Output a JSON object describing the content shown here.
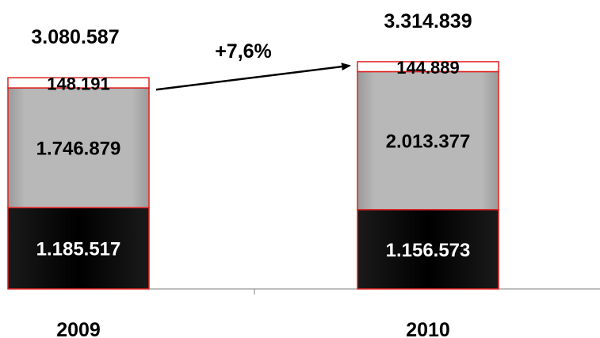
{
  "chart_data": {
    "type": "bar",
    "stacked": true,
    "categories": [
      "2009",
      "2010"
    ],
    "series": [
      {
        "values": [
          1185517,
          1156573
        ],
        "value_labels": [
          "1.185.517",
          "1.156.573"
        ],
        "color": "#000000",
        "label_color": "#ffffff"
      },
      {
        "values": [
          1746879,
          2013377
        ],
        "value_labels": [
          "1.746.879",
          "2.013.377"
        ],
        "color": "#b4b4b4",
        "label_color": "#000000"
      },
      {
        "values": [
          148191,
          144889
        ],
        "value_labels": [
          "148.191",
          "144.889"
        ],
        "color": "#ffffff",
        "label_color": "#000000"
      }
    ],
    "totals": [
      3080587,
      3314839
    ],
    "total_labels": [
      "3.080.587",
      "3.314.839"
    ],
    "growth_annotation": "+7,6%",
    "border_color": "#e02020"
  }
}
